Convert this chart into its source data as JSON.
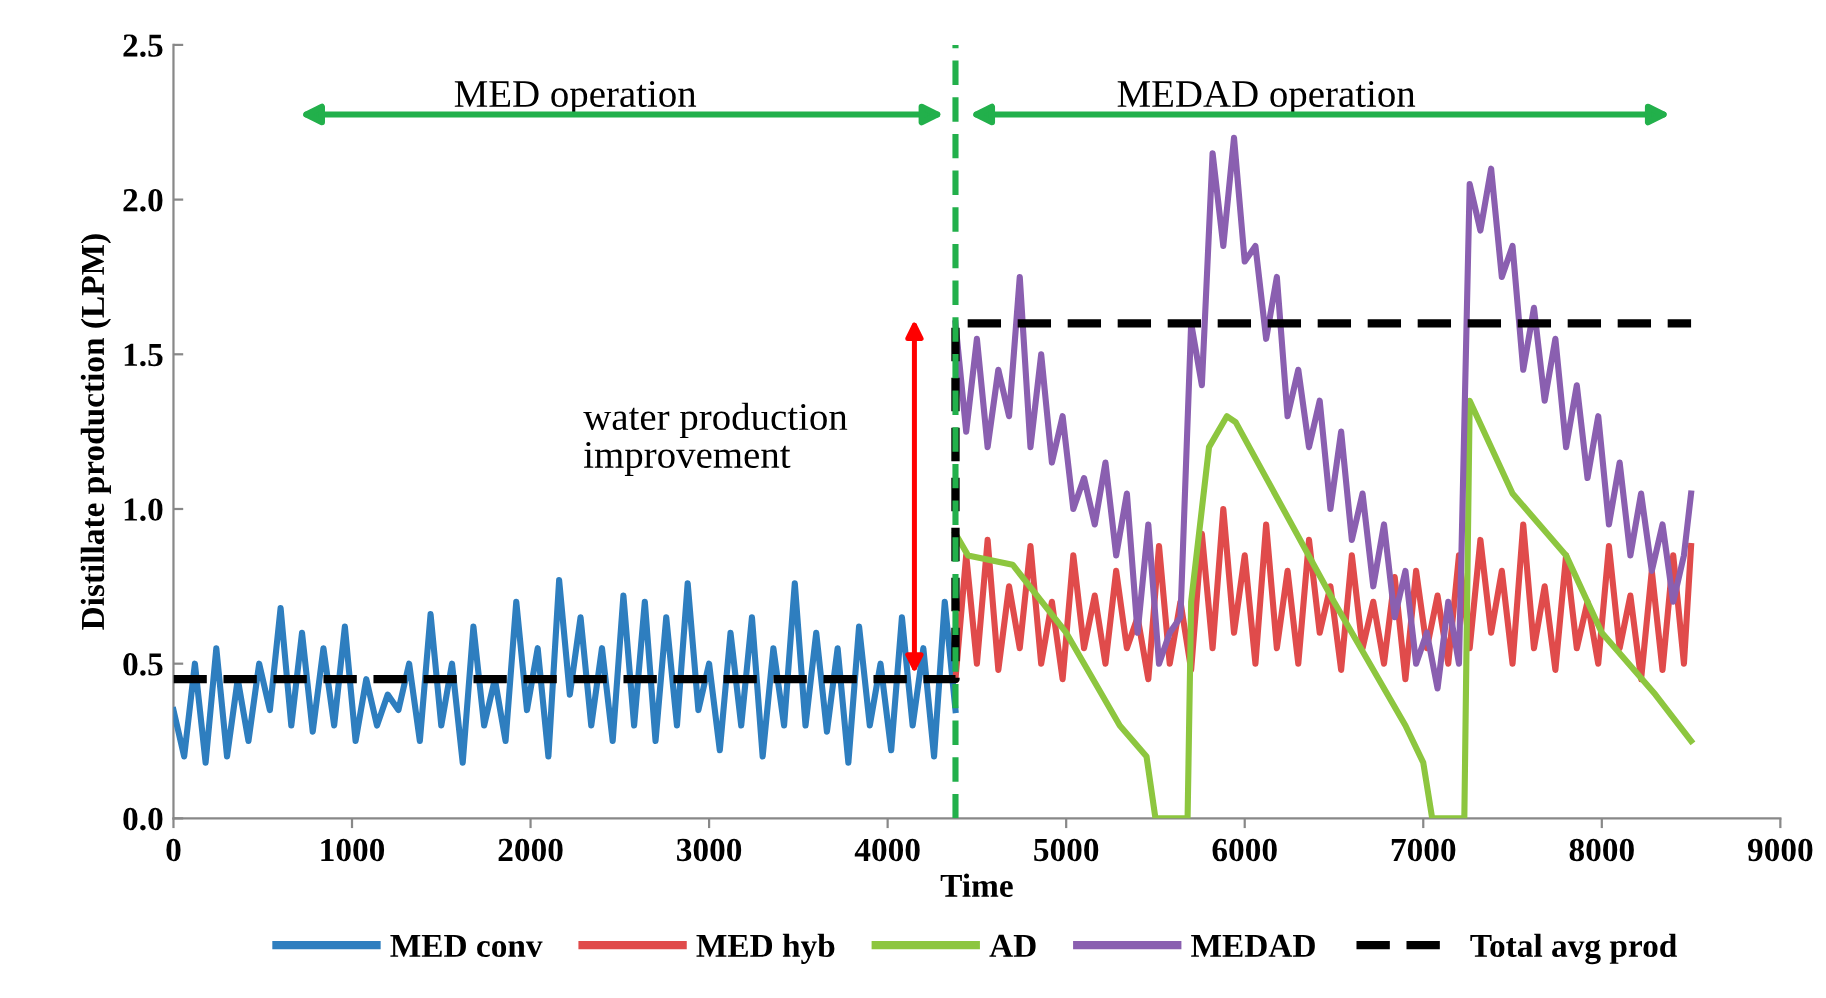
{
  "chart_data": {
    "type": "line",
    "xlabel": "Time",
    "ylabel": "Distillate production (LPM)",
    "xlim": [
      0,
      9000
    ],
    "xticks": [
      0,
      1000,
      2000,
      3000,
      4000,
      5000,
      6000,
      7000,
      8000,
      9000
    ],
    "ylim": [
      0,
      2.5
    ],
    "yticks": [
      {
        "value": 0,
        "label": "0.0"
      },
      {
        "value": 0.5,
        "label": "0.5"
      },
      {
        "value": 1,
        "label": "1.0"
      },
      {
        "value": 1.5,
        "label": "1.5"
      },
      {
        "value": 2,
        "label": "2.0"
      },
      {
        "value": 2.5,
        "label": "2.5"
      }
    ],
    "grid": false,
    "legend": "bottom",
    "marker": "none",
    "ref_lines": [
      {
        "axis": "x",
        "value": 4380,
        "label": null,
        "color": "#22b04b",
        "line_style": "dashed"
      }
    ],
    "annotations": [
      "MED operation",
      "MEDAD operation",
      "water production improvement"
    ],
    "series": [
      {
        "name": "MED conv",
        "color": "#2e7ebf",
        "line_style": "solid",
        "x": [
          0,
          60,
          120,
          180,
          240,
          300,
          360,
          420,
          480,
          540,
          600,
          660,
          720,
          780,
          840,
          900,
          960,
          1020,
          1080,
          1140,
          1200,
          1260,
          1320,
          1380,
          1440,
          1500,
          1560,
          1620,
          1680,
          1740,
          1800,
          1860,
          1920,
          1980,
          2040,
          2100,
          2160,
          2220,
          2280,
          2340,
          2400,
          2460,
          2520,
          2580,
          2640,
          2700,
          2760,
          2820,
          2880,
          2940,
          3000,
          3060,
          3120,
          3180,
          3240,
          3300,
          3360,
          3420,
          3480,
          3540,
          3600,
          3660,
          3720,
          3780,
          3840,
          3900,
          3960,
          4020,
          4080,
          4140,
          4200,
          4260,
          4320,
          4380
        ],
        "values": [
          0.35,
          0.2,
          0.5,
          0.18,
          0.55,
          0.2,
          0.45,
          0.25,
          0.5,
          0.35,
          0.68,
          0.3,
          0.6,
          0.28,
          0.55,
          0.3,
          0.62,
          0.25,
          0.45,
          0.3,
          0.4,
          0.35,
          0.5,
          0.25,
          0.66,
          0.3,
          0.5,
          0.18,
          0.62,
          0.3,
          0.45,
          0.25,
          0.7,
          0.35,
          0.55,
          0.2,
          0.77,
          0.4,
          0.65,
          0.3,
          0.55,
          0.25,
          0.72,
          0.3,
          0.7,
          0.25,
          0.65,
          0.3,
          0.76,
          0.35,
          0.5,
          0.22,
          0.6,
          0.3,
          0.65,
          0.2,
          0.55,
          0.3,
          0.76,
          0.3,
          0.6,
          0.28,
          0.55,
          0.18,
          0.62,
          0.3,
          0.5,
          0.22,
          0.65,
          0.3,
          0.55,
          0.2,
          0.7,
          0.35
        ]
      },
      {
        "name": "MED hyb",
        "color": "#e04b4b",
        "line_style": "solid",
        "x": [
          4380,
          4440,
          4500,
          4560,
          4620,
          4680,
          4740,
          4800,
          4860,
          4920,
          4980,
          5040,
          5100,
          5160,
          5220,
          5280,
          5340,
          5400,
          5460,
          5520,
          5580,
          5640,
          5700,
          5760,
          5820,
          5880,
          5940,
          6000,
          6060,
          6120,
          6180,
          6240,
          6300,
          6360,
          6420,
          6480,
          6540,
          6600,
          6660,
          6720,
          6780,
          6840,
          6900,
          6960,
          7020,
          7080,
          7140,
          7200,
          7260,
          7320,
          7380,
          7440,
          7500,
          7560,
          7620,
          7680,
          7740,
          7800,
          7860,
          7920,
          7980,
          8040,
          8100,
          8160,
          8220,
          8280,
          8340,
          8400,
          8460,
          8500
        ],
        "values": [
          0.45,
          0.85,
          0.5,
          0.9,
          0.48,
          0.75,
          0.55,
          0.88,
          0.5,
          0.7,
          0.45,
          0.85,
          0.55,
          0.72,
          0.5,
          0.8,
          0.55,
          0.65,
          0.45,
          0.88,
          0.5,
          0.7,
          0.48,
          0.92,
          0.55,
          1.0,
          0.6,
          0.85,
          0.5,
          0.95,
          0.55,
          0.8,
          0.5,
          0.9,
          0.6,
          0.75,
          0.48,
          0.85,
          0.55,
          0.7,
          0.5,
          0.78,
          0.45,
          0.8,
          0.55,
          0.72,
          0.5,
          0.85,
          0.55,
          0.9,
          0.6,
          0.8,
          0.5,
          0.95,
          0.55,
          0.75,
          0.48,
          0.85,
          0.55,
          0.7,
          0.5,
          0.88,
          0.55,
          0.72,
          0.45,
          0.8,
          0.48,
          0.85,
          0.5,
          0.88
        ]
      },
      {
        "name": "AD",
        "color": "#8dc63f",
        "line_style": "solid",
        "x": [
          4380,
          4450,
          4700,
          5000,
          5300,
          5450,
          5500,
          5680,
          5700,
          5800,
          5900,
          5950,
          6500,
          6900,
          7000,
          7050,
          7230,
          7260,
          7500,
          7800,
          8000,
          8300,
          8500
        ],
        "values": [
          0.92,
          0.85,
          0.82,
          0.6,
          0.3,
          0.2,
          0,
          0,
          0.7,
          1.2,
          1.3,
          1.28,
          0.7,
          0.3,
          0.18,
          0,
          0,
          1.35,
          1.05,
          0.85,
          0.6,
          0.4,
          0.25
        ]
      },
      {
        "name": "MEDAD",
        "color": "#8a5fb0",
        "line_style": "solid",
        "x": [
          4380,
          4440,
          4500,
          4560,
          4620,
          4680,
          4740,
          4800,
          4860,
          4920,
          4980,
          5040,
          5100,
          5160,
          5220,
          5280,
          5340,
          5400,
          5460,
          5520,
          5580,
          5640,
          5700,
          5760,
          5820,
          5880,
          5940,
          6000,
          6060,
          6120,
          6180,
          6240,
          6300,
          6360,
          6420,
          6480,
          6540,
          6600,
          6660,
          6720,
          6780,
          6840,
          6900,
          6960,
          7020,
          7080,
          7140,
          7200,
          7260,
          7320,
          7380,
          7440,
          7500,
          7560,
          7620,
          7680,
          7740,
          7800,
          7860,
          7920,
          7980,
          8040,
          8100,
          8160,
          8220,
          8280,
          8340,
          8400,
          8460,
          8500
        ],
        "values": [
          1.6,
          1.25,
          1.55,
          1.2,
          1.45,
          1.3,
          1.75,
          1.2,
          1.5,
          1.15,
          1.3,
          1.0,
          1.1,
          0.95,
          1.15,
          0.85,
          1.05,
          0.6,
          0.95,
          0.5,
          0.6,
          0.65,
          1.6,
          1.4,
          2.15,
          1.85,
          2.2,
          1.8,
          1.85,
          1.55,
          1.75,
          1.3,
          1.45,
          1.2,
          1.35,
          1.0,
          1.25,
          0.9,
          1.05,
          0.75,
          0.95,
          0.65,
          0.8,
          0.5,
          0.6,
          0.42,
          0.7,
          0.5,
          2.05,
          1.9,
          2.1,
          1.75,
          1.85,
          1.45,
          1.65,
          1.35,
          1.55,
          1.2,
          1.4,
          1.1,
          1.3,
          0.95,
          1.15,
          0.85,
          1.05,
          0.8,
          0.95,
          0.7,
          0.85,
          1.05
        ]
      },
      {
        "name": "Total avg prod",
        "color": "#000000",
        "line_style": "dashed",
        "x": [
          0,
          4380,
          4380,
          8500
        ],
        "values": [
          0.45,
          0.45,
          1.6,
          1.6
        ]
      }
    ]
  }
}
